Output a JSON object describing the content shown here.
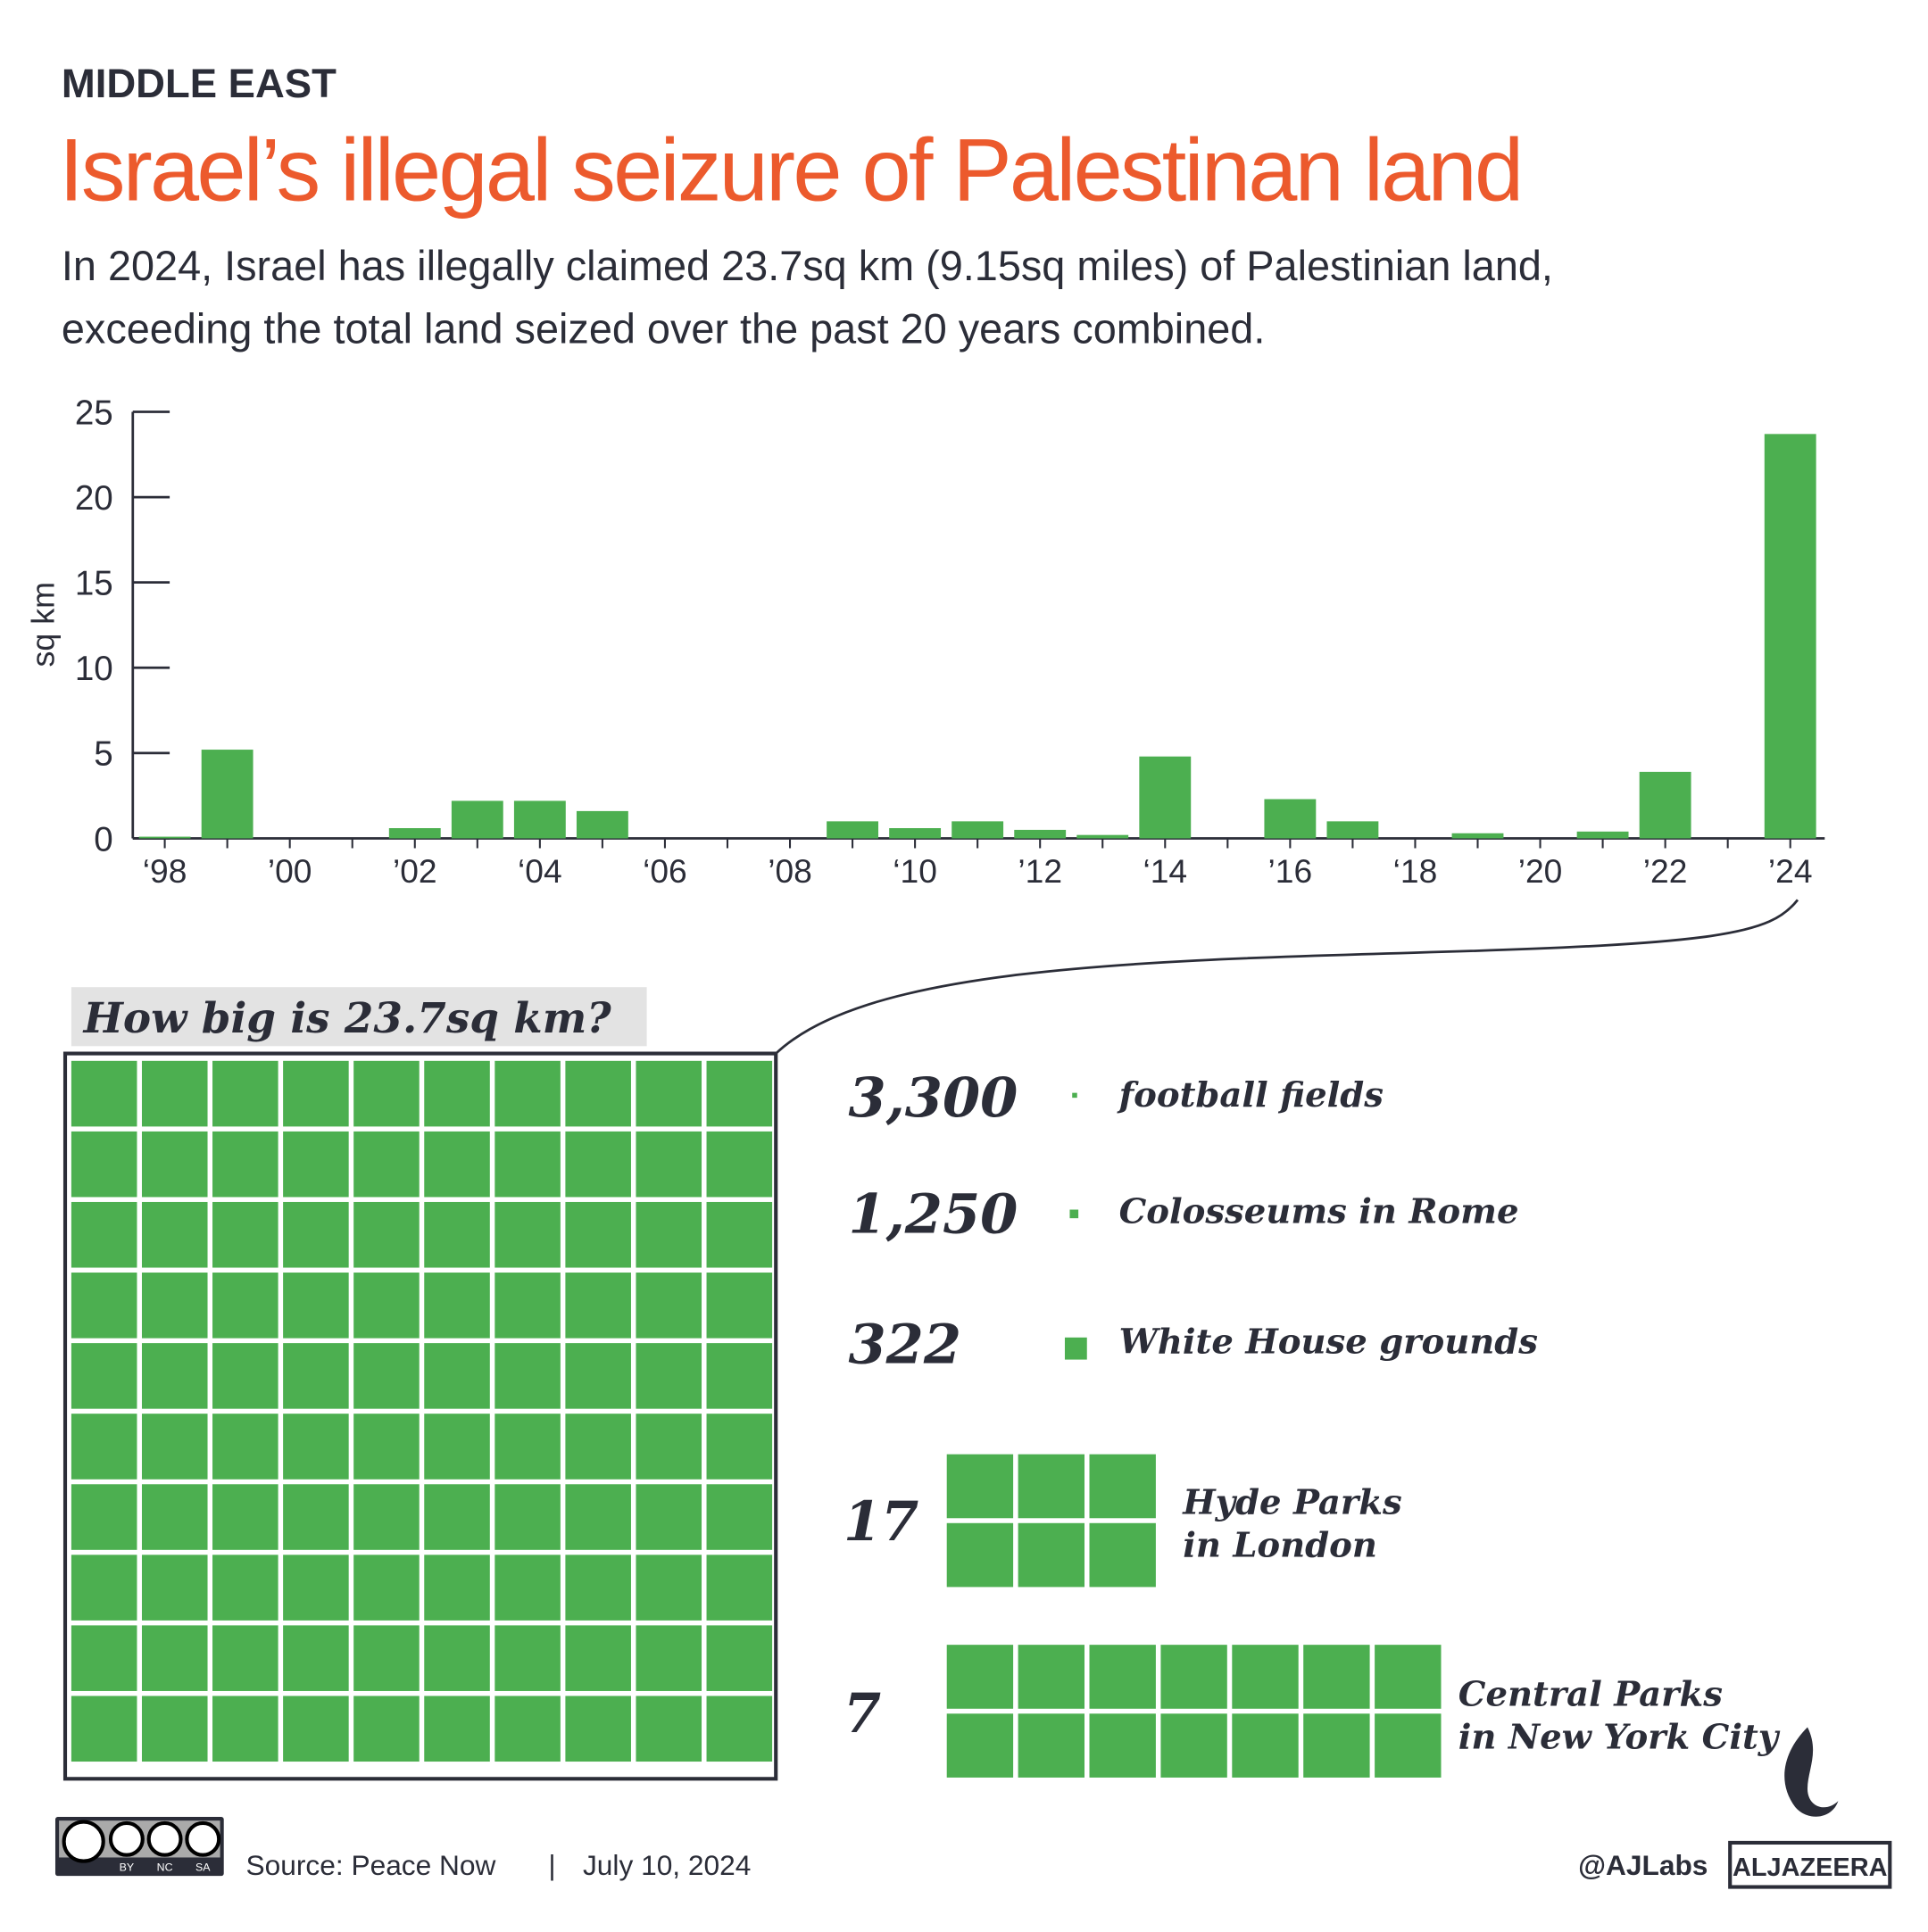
{
  "header": {
    "section": "MIDDLE EAST",
    "title": "Israel’s illegal seizure of Palestinan land",
    "subtitle": [
      "In 2024, Israel has illegally claimed 23.7sq km (9.15sq miles) of Palestinian land,",
      "exceeding the total land seized over the past 20 years combined."
    ]
  },
  "chart_data": {
    "type": "bar",
    "y_label": "sq km",
    "color": "#4caf50",
    "categories": [
      "‘98",
      null,
      "’00",
      null,
      "’02",
      null,
      "‘04",
      null,
      "‘06",
      null,
      "’08",
      null,
      "‘10",
      null,
      "’12",
      null,
      "‘14",
      null,
      "’16",
      null,
      "‘18",
      null,
      "’20",
      null,
      "’22",
      null,
      "’24"
    ],
    "values": [
      0.1,
      5.2,
      0,
      0,
      0.6,
      2.2,
      2.2,
      1.6,
      0,
      0,
      0,
      1.0,
      0.6,
      1.0,
      0.5,
      0.2,
      4.8,
      0,
      2.3,
      1.0,
      0,
      0.3,
      0,
      0.4,
      3.9,
      0,
      23.7
    ],
    "ylim": [
      0,
      25
    ],
    "yticks": [
      0,
      5,
      10,
      15,
      20,
      25
    ]
  },
  "comparison": {
    "heading": "How big is 23.7sq km?",
    "items": [
      {
        "number": "3,300",
        "label": [
          "football fields"
        ]
      },
      {
        "number": "1,250",
        "label": [
          "Colosseums in Rome"
        ]
      },
      {
        "number": "322",
        "label": [
          "White House grounds"
        ]
      },
      {
        "number": "17",
        "label": [
          "Hyde Parks",
          "in London"
        ]
      },
      {
        "number": "7",
        "label": [
          "Central Parks",
          "in New York City"
        ]
      }
    ]
  },
  "footer": {
    "source": "Source: Peace Now",
    "separator": "|",
    "date": "July 10, 2024",
    "handle": "@AJLabs",
    "brand": "ALJAZEERA",
    "license": [
      "BY",
      "NC",
      "SA"
    ]
  }
}
